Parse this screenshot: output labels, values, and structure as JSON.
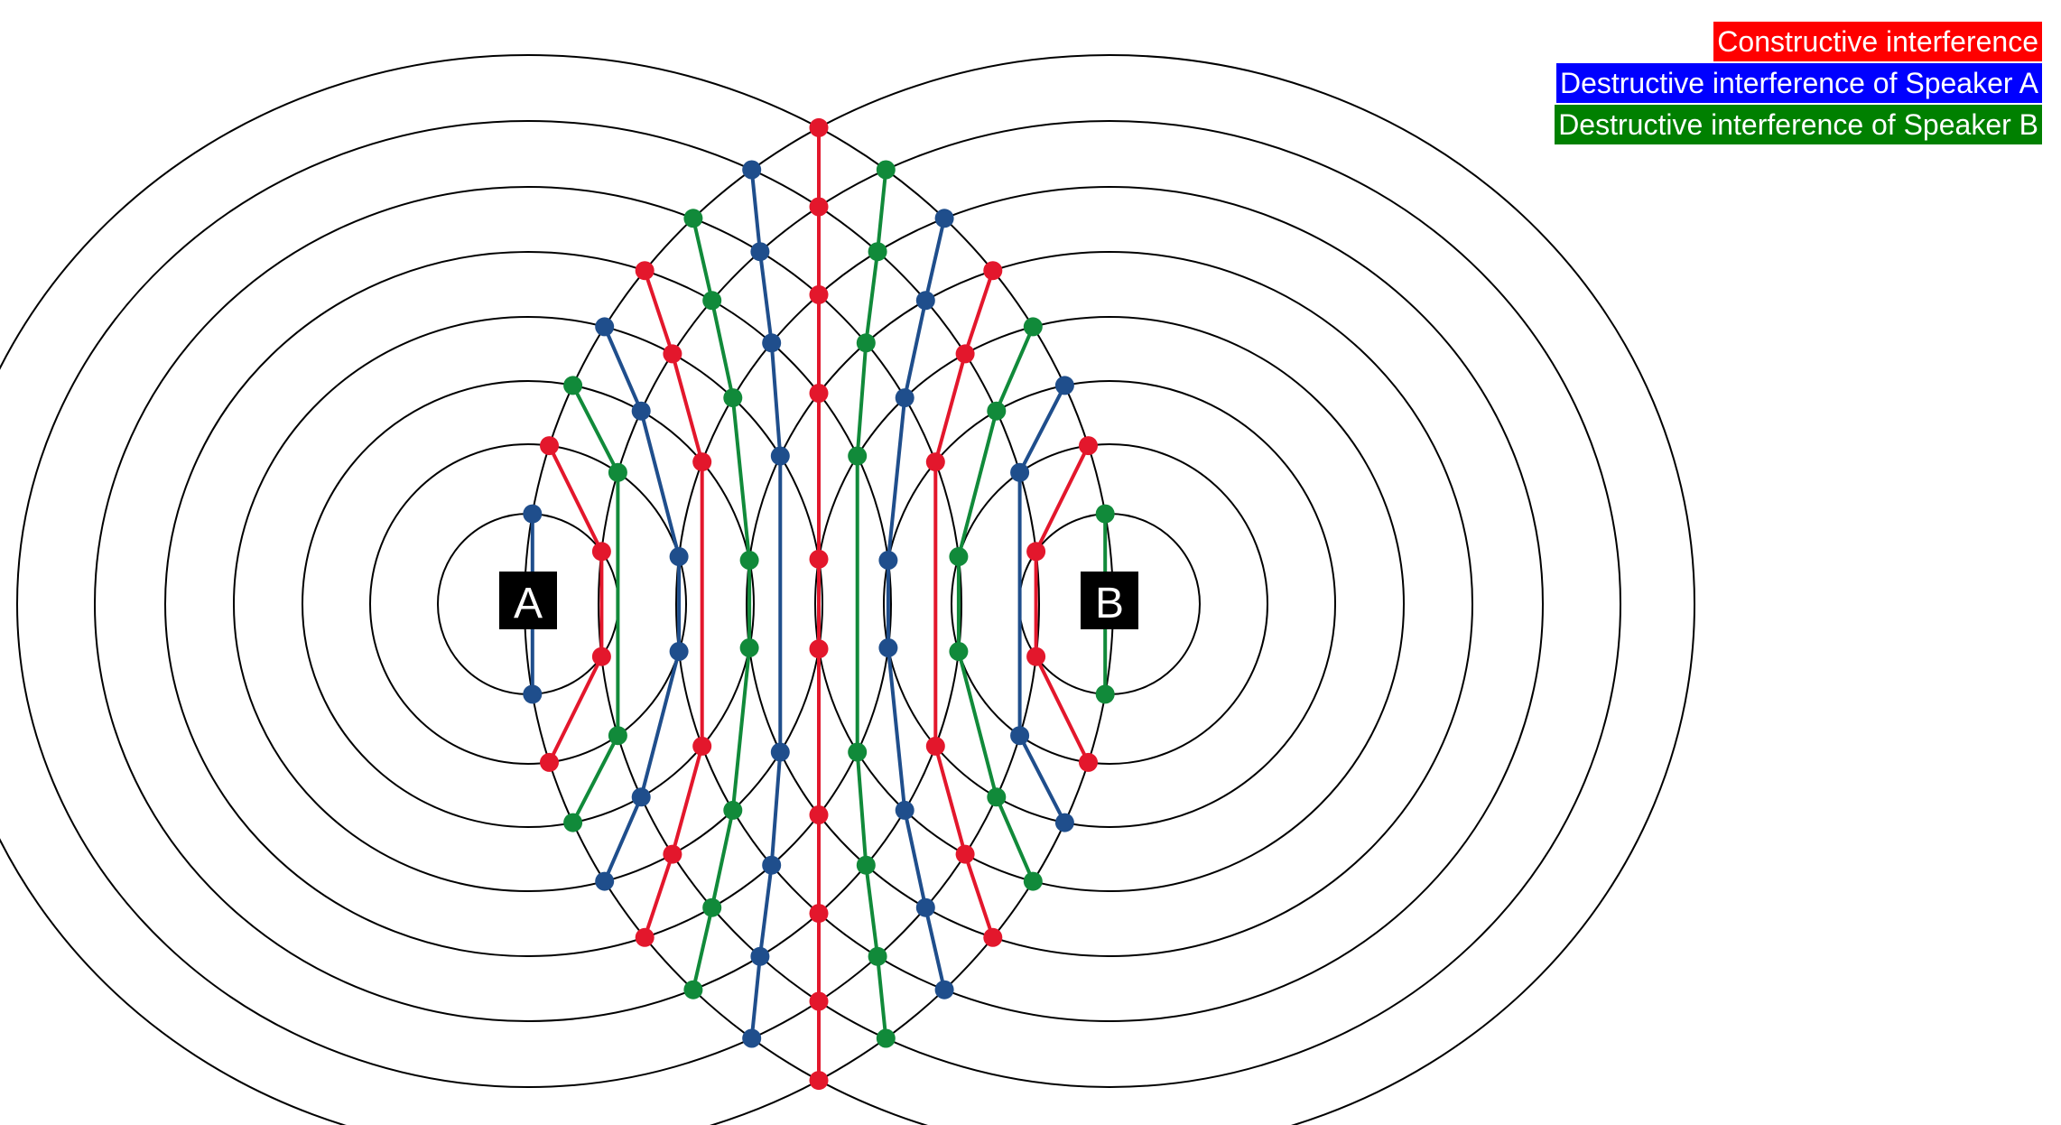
{
  "legend": {
    "items": [
      {
        "label": "Constructive interference",
        "color": "#ff0000"
      },
      {
        "label": "Destructive interference of Speaker A",
        "color": "#0000ff"
      },
      {
        "label": "Destructive interference of Speaker B",
        "color": "#008000"
      }
    ]
  },
  "speakers": {
    "a": {
      "label": "A"
    },
    "b": {
      "label": "B"
    }
  },
  "colors": {
    "constructive": "#e3172c",
    "destructive_a": "#1f4e8c",
    "destructive_b": "#118a3a",
    "wavefront": "#000000",
    "speaker_box": "#000000"
  },
  "wavefronts_per_speaker": 8
}
